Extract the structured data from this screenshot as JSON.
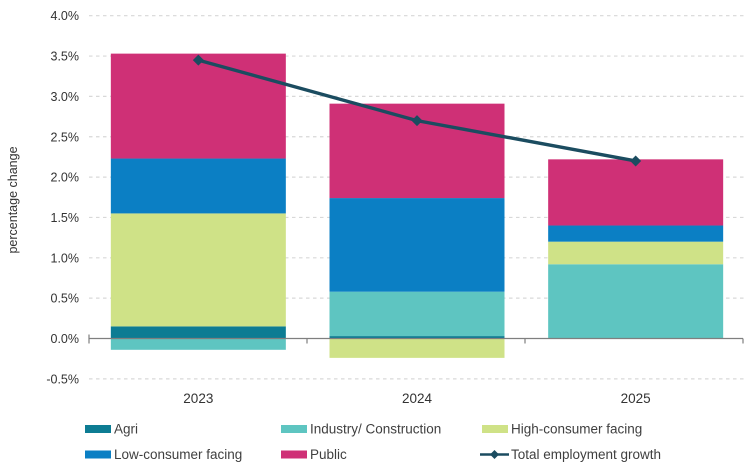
{
  "page": {
    "background": "#ffffff"
  },
  "chart_data": {
    "type": "bar",
    "subtype": "stacked-bar-with-line",
    "categories": [
      "2023",
      "2024",
      "2025"
    ],
    "series": [
      {
        "name": "Agri",
        "kind": "bar",
        "color": "#0d7c93",
        "values": [
          0.15,
          0.03,
          0.0
        ]
      },
      {
        "name": "Industry/ Construction",
        "kind": "bar",
        "color": "#5ec5c1",
        "values": [
          -0.14,
          0.55,
          0.92
        ]
      },
      {
        "name": "High-consumer facing",
        "kind": "bar",
        "color": "#cfe287",
        "values": [
          1.4,
          -0.24,
          0.28
        ]
      },
      {
        "name": "Low-consumer facing",
        "kind": "bar",
        "color": "#0b7fc4",
        "values": [
          0.68,
          1.16,
          0.2
        ]
      },
      {
        "name": "Public",
        "kind": "bar",
        "color": "#cf3076",
        "values": [
          1.3,
          1.17,
          0.82
        ]
      },
      {
        "name": "Total employment growth",
        "kind": "line",
        "color": "#1b4c60",
        "values": [
          3.45,
          2.7,
          2.2
        ]
      }
    ],
    "title": "",
    "xlabel": "",
    "ylabel": "percentage change",
    "ylim": [
      -0.5,
      4.0
    ],
    "ytick_step": 0.5,
    "ytick_labels": [
      "4.0%",
      "3.5%",
      "3.0%",
      "2.5%",
      "2.0%",
      "1.5%",
      "1.0%",
      "0.5%",
      "0.0%",
      "-0.5%"
    ],
    "grid": "horizontal-dashed",
    "legend_position": "bottom",
    "legend_columns": 3,
    "colors": {
      "gridline": "#d8d8d8",
      "axis_line": "#7f7f7f",
      "tick_text": "#333333",
      "axis_title_text": "#333333",
      "legend_text": "#3f3f3f"
    }
  }
}
